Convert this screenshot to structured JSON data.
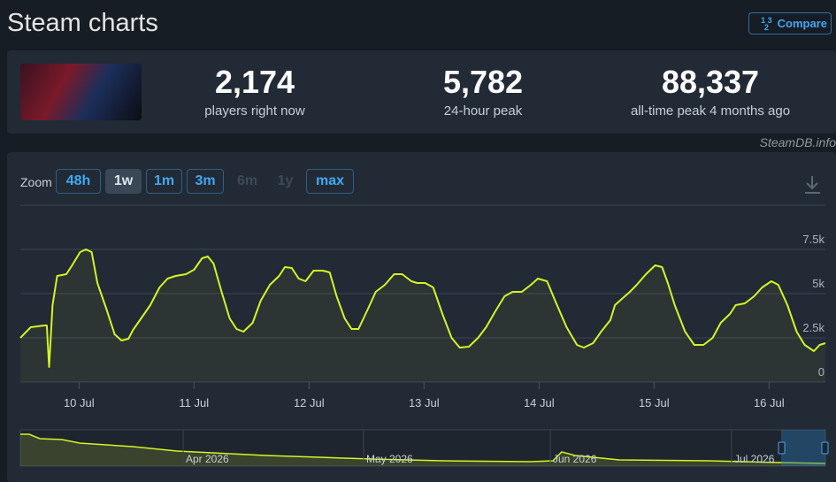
{
  "header": {
    "title": "Steam charts",
    "compare_button": "Compare"
  },
  "stats": [
    {
      "value": "2,174",
      "label": "players right now"
    },
    {
      "value": "5,782",
      "label": "24-hour peak"
    },
    {
      "value": "88,337",
      "label": "all-time peak 4 months ago"
    }
  ],
  "credit": "SteamDB.info",
  "zoom": {
    "label": "Zoom",
    "buttons": [
      "48h",
      "1w",
      "1m",
      "3m",
      "6m",
      "1y",
      "max"
    ],
    "active": "1w",
    "disabled": [
      "6m",
      "1y"
    ]
  },
  "navigator": {
    "labels": [
      "Apr 2026",
      "May 2026",
      "Jun 2026",
      "Jul 2026"
    ]
  },
  "chart_data": {
    "type": "line",
    "color": "#d4f425",
    "grid": true,
    "x": [
      9.49,
      9.58,
      9.7,
      9.72,
      9.74,
      9.77,
      9.81,
      9.89,
      9.94,
      10.01,
      10.06,
      10.11,
      10.16,
      10.24,
      10.31,
      10.37,
      10.43,
      10.47,
      10.54,
      10.62,
      10.7,
      10.77,
      10.84,
      10.93,
      11.0,
      11.07,
      11.12,
      11.17,
      11.24,
      11.31,
      11.37,
      11.43,
      11.51,
      11.58,
      11.66,
      11.74,
      11.79,
      11.85,
      11.91,
      11.97,
      12.04,
      12.12,
      12.18,
      12.24,
      12.31,
      12.37,
      12.43,
      12.51,
      12.58,
      12.66,
      12.74,
      12.81,
      12.89,
      12.94,
      13.01,
      13.08,
      13.16,
      13.24,
      13.31,
      13.39,
      13.47,
      13.54,
      13.62,
      13.7,
      13.77,
      13.85,
      13.93,
      13.99,
      14.07,
      14.14,
      14.24,
      14.33,
      14.39,
      14.47,
      14.54,
      14.62,
      14.66,
      14.72,
      14.79,
      14.85,
      14.93,
      15.01,
      15.07,
      15.12,
      15.18,
      15.27,
      15.35,
      15.43,
      15.51,
      15.58,
      15.66,
      15.71,
      15.79,
      15.87,
      15.94,
      16.02,
      16.08,
      16.16,
      16.24,
      16.31,
      16.39,
      16.44,
      16.49
    ],
    "values": [
      2500,
      3100,
      3200,
      3200,
      850,
      4350,
      6000,
      6100,
      6600,
      7350,
      7500,
      7350,
      5600,
      4100,
      2700,
      2350,
      2450,
      2950,
      3600,
      4350,
      5350,
      5850,
      6000,
      6100,
      6350,
      7000,
      7100,
      6700,
      5100,
      3600,
      3000,
      2850,
      3350,
      4600,
      5500,
      6000,
      6500,
      6450,
      5850,
      5700,
      6300,
      6300,
      6200,
      4850,
      3600,
      3000,
      3000,
      4100,
      5100,
      5500,
      6100,
      6100,
      5700,
      5600,
      5600,
      5350,
      3850,
      2500,
      1950,
      2000,
      2500,
      3100,
      4000,
      4850,
      5100,
      5100,
      5500,
      5850,
      5700,
      4600,
      3100,
      2100,
      1950,
      2200,
      2850,
      3500,
      4350,
      4700,
      5100,
      5500,
      6100,
      6600,
      6500,
      5600,
      4350,
      2850,
      2100,
      2100,
      2500,
      3350,
      3850,
      4350,
      4450,
      4850,
      5350,
      5700,
      5500,
      4350,
      2850,
      2100,
      1750,
      2100,
      2200
    ],
    "xlim": [
      9.49,
      16.49
    ],
    "xticks": [
      {
        "value": 10,
        "label": "10 Jul"
      },
      {
        "value": 11,
        "label": "11 Jul"
      },
      {
        "value": 12,
        "label": "12 Jul"
      },
      {
        "value": 13,
        "label": "13 Jul"
      },
      {
        "value": 14,
        "label": "14 Jul"
      },
      {
        "value": 15,
        "label": "15 Jul"
      },
      {
        "value": 16,
        "label": "16 Jul"
      }
    ],
    "ylim": [
      0,
      10000
    ],
    "yticks": [
      0,
      {
        "value": 2500,
        "label": "2.5k"
      },
      {
        "value": 5000,
        "label": "5k"
      },
      {
        "value": 7500,
        "label": "7.5k"
      }
    ]
  }
}
